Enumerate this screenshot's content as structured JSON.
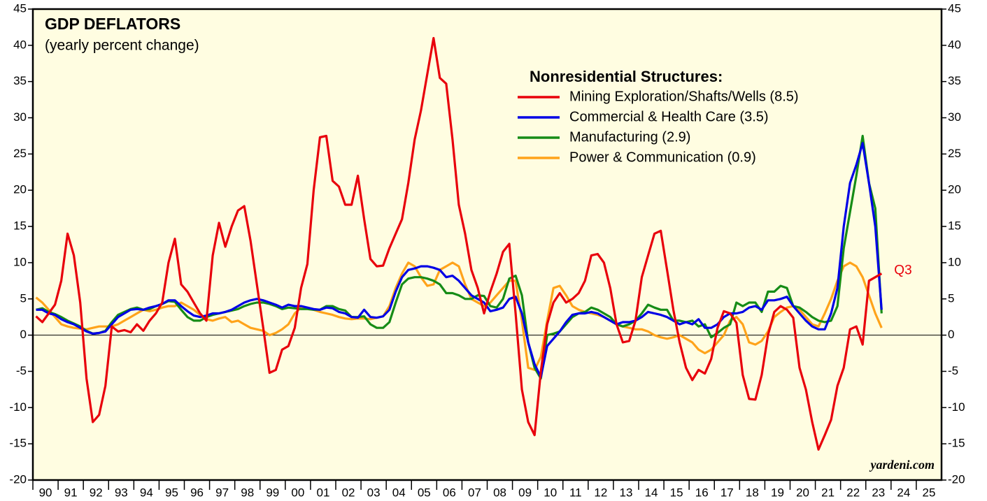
{
  "chart_data": {
    "type": "line",
    "title": "GDP DEFLATORS",
    "subtitle": "(yearly percent change)",
    "legend_title": "Nonresidential Structures:",
    "annotations": [
      "Q3",
      "yardeni.com"
    ],
    "xlim": [
      1990,
      2026
    ],
    "xticks": [
      {
        "value": 1990.5,
        "label": "90"
      },
      {
        "value": 1991.5,
        "label": "91"
      },
      {
        "value": 1992.5,
        "label": "92"
      },
      {
        "value": 1993.5,
        "label": "93"
      },
      {
        "value": 1994.5,
        "label": "94"
      },
      {
        "value": 1995.5,
        "label": "95"
      },
      {
        "value": 1996.5,
        "label": "96"
      },
      {
        "value": 1997.5,
        "label": "97"
      },
      {
        "value": 1998.5,
        "label": "98"
      },
      {
        "value": 1999.5,
        "label": "99"
      },
      {
        "value": 2000.5,
        "label": "00"
      },
      {
        "value": 2001.5,
        "label": "01"
      },
      {
        "value": 2002.5,
        "label": "02"
      },
      {
        "value": 2003.5,
        "label": "03"
      },
      {
        "value": 2004.5,
        "label": "04"
      },
      {
        "value": 2005.5,
        "label": "05"
      },
      {
        "value": 2006.5,
        "label": "06"
      },
      {
        "value": 2007.5,
        "label": "07"
      },
      {
        "value": 2008.5,
        "label": "08"
      },
      {
        "value": 2009.5,
        "label": "09"
      },
      {
        "value": 2010.5,
        "label": "10"
      },
      {
        "value": 2011.5,
        "label": "11"
      },
      {
        "value": 2012.5,
        "label": "12"
      },
      {
        "value": 2013.5,
        "label": "13"
      },
      {
        "value": 2014.5,
        "label": "14"
      },
      {
        "value": 2015.5,
        "label": "15"
      },
      {
        "value": 2016.5,
        "label": "16"
      },
      {
        "value": 2017.5,
        "label": "17"
      },
      {
        "value": 2018.5,
        "label": "18"
      },
      {
        "value": 2019.5,
        "label": "19"
      },
      {
        "value": 2020.5,
        "label": "20"
      },
      {
        "value": 2021.5,
        "label": "21"
      },
      {
        "value": 2022.5,
        "label": "22"
      },
      {
        "value": 2023.5,
        "label": "23"
      },
      {
        "value": 2024.5,
        "label": "24"
      },
      {
        "value": 2025.5,
        "label": "25"
      }
    ],
    "ylim": [
      -20,
      45
    ],
    "yticks": [
      -20,
      -15,
      -10,
      -5,
      0,
      5,
      10,
      15,
      20,
      25,
      30,
      35,
      40,
      45
    ],
    "x": [
      1990.125,
      1990.375,
      1990.625,
      1990.875,
      1991.125,
      1991.375,
      1991.625,
      1991.875,
      1992.125,
      1992.375,
      1992.625,
      1992.875,
      1993.125,
      1993.375,
      1993.625,
      1993.875,
      1994.125,
      1994.375,
      1994.625,
      1994.875,
      1995.125,
      1995.375,
      1995.625,
      1995.875,
      1996.125,
      1996.375,
      1996.625,
      1996.875,
      1997.125,
      1997.375,
      1997.625,
      1997.875,
      1998.125,
      1998.375,
      1998.625,
      1998.875,
      1999.125,
      1999.375,
      1999.625,
      1999.875,
      2000.125,
      2000.375,
      2000.625,
      2000.875,
      2001.125,
      2001.375,
      2001.625,
      2001.875,
      2002.125,
      2002.375,
      2002.625,
      2002.875,
      2003.125,
      2003.375,
      2003.625,
      2003.875,
      2004.125,
      2004.375,
      2004.625,
      2004.875,
      2005.125,
      2005.375,
      2005.625,
      2005.875,
      2006.125,
      2006.375,
      2006.625,
      2006.875,
      2007.125,
      2007.375,
      2007.625,
      2007.875,
      2008.125,
      2008.375,
      2008.625,
      2008.875,
      2009.125,
      2009.375,
      2009.625,
      2009.875,
      2010.125,
      2010.375,
      2010.625,
      2010.875,
      2011.125,
      2011.375,
      2011.625,
      2011.875,
      2012.125,
      2012.375,
      2012.625,
      2012.875,
      2013.125,
      2013.375,
      2013.625,
      2013.875,
      2014.125,
      2014.375,
      2014.625,
      2014.875,
      2015.125,
      2015.375,
      2015.625,
      2015.875,
      2016.125,
      2016.375,
      2016.625,
      2016.875,
      2017.125,
      2017.375,
      2017.625,
      2017.875,
      2018.125,
      2018.375,
      2018.625,
      2018.875,
      2019.125,
      2019.375,
      2019.625,
      2019.875,
      2020.125,
      2020.375,
      2020.625,
      2020.875,
      2021.125,
      2021.375,
      2021.625,
      2021.875,
      2022.125,
      2022.375,
      2022.625,
      2022.875,
      2023.125,
      2023.375,
      2023.625
    ],
    "series": [
      {
        "name": "Mining Exploration/Shafts/Wells (8.5)",
        "color": "#e8000b",
        "values": [
          2.6,
          1.8,
          3,
          4.2,
          7.5,
          14,
          11,
          4.5,
          -6,
          -12,
          -11,
          -7,
          1.2,
          0.5,
          0.7,
          0.4,
          1.5,
          0.6,
          2,
          3,
          4.5,
          10,
          13.3,
          7,
          6,
          4.5,
          3,
          2,
          11,
          15.5,
          12.2,
          15,
          17.2,
          17.8,
          13,
          7,
          1,
          -5.2,
          -4.8,
          -2,
          -1.5,
          1,
          6.5,
          9.8,
          20,
          27.3,
          27.5,
          21.3,
          20.5,
          18,
          18,
          22,
          16,
          10.5,
          9.5,
          9.6,
          12,
          14,
          16,
          21,
          27,
          31,
          36,
          41,
          35.5,
          34.7,
          27,
          18,
          14,
          9,
          6.5,
          3,
          6,
          8.5,
          11.5,
          12.6,
          3,
          -7.5,
          -12,
          -13.8,
          -5,
          1.5,
          4.5,
          5.8,
          4.5,
          5,
          5.8,
          7.5,
          11,
          11.2,
          10,
          6.5,
          1.5,
          -1,
          -0.8,
          2,
          8,
          11,
          14,
          14.4,
          9,
          3.5,
          -1,
          -4.5,
          -6.2,
          -4.8,
          -5.3,
          -3.3,
          1,
          3.3,
          3,
          1.7,
          -5.5,
          -8.8,
          -8.9,
          -5.5,
          0,
          3.2,
          4,
          3.5,
          2.4,
          -4.5,
          -7.5,
          -12,
          -15.8,
          -13.8,
          -11.7,
          -7,
          -4.5,
          0.8,
          1.2,
          -1.3,
          7.5,
          8,
          8.5
        ]
      },
      {
        "name": "Commercial & Health Care (3.5)",
        "color": "#0000e6",
        "values": [
          3.5,
          3.5,
          3,
          2.8,
          2.2,
          1.8,
          1.5,
          1,
          0.5,
          0.2,
          0.3,
          0.5,
          1.5,
          2.5,
          3,
          3.5,
          3.6,
          3.5,
          3.8,
          4,
          4.3,
          4.8,
          4.8,
          4,
          3.3,
          2.7,
          2.5,
          2.7,
          3,
          3,
          3.2,
          3.5,
          4,
          4.5,
          4.8,
          5,
          4.8,
          4.5,
          4.2,
          3.8,
          4.2,
          4,
          4,
          3.8,
          3.6,
          3.5,
          3.8,
          3.7,
          3.2,
          3,
          2.5,
          2.4,
          3.5,
          2.5,
          2.4,
          2.6,
          3.5,
          6,
          8,
          9,
          9.2,
          9.5,
          9.5,
          9.3,
          9,
          8,
          8.2,
          7.5,
          6.5,
          5.5,
          5,
          4.5,
          3.3,
          3.5,
          3.8,
          5,
          5.3,
          3,
          -1,
          -4,
          -5.8,
          -1.5,
          -0.5,
          0.5,
          1.8,
          2.8,
          3,
          3,
          3.2,
          3,
          2.5,
          2,
          1.5,
          1.8,
          1.8,
          2,
          2.5,
          3.2,
          3,
          2.8,
          2.5,
          2,
          1.5,
          1.8,
          1.5,
          2.2,
          1,
          1,
          1.5,
          2.5,
          3,
          3,
          3.2,
          3.8,
          4,
          3.5,
          4.8,
          4.8,
          5,
          5.3,
          4,
          3,
          2,
          1.2,
          0.8,
          0.8,
          3,
          6.5,
          15,
          21,
          23.5,
          26.5,
          21,
          15,
          3.5
        ]
      },
      {
        "name": "Manufacturing (2.9)",
        "color": "#168c16",
        "values": [
          3.5,
          3.7,
          3.2,
          2.9,
          2.5,
          2,
          1.6,
          1.2,
          0.6,
          0.2,
          0.3,
          0.6,
          1.8,
          2.8,
          3.2,
          3.6,
          3.8,
          3.5,
          3.6,
          4,
          4.3,
          4.7,
          4.6,
          3.5,
          2.5,
          2,
          2,
          2.5,
          2.8,
          3,
          3.2,
          3.4,
          3.6,
          4,
          4.3,
          4.5,
          4.5,
          4.3,
          4,
          3.6,
          3.8,
          3.7,
          3.6,
          3.6,
          3.5,
          3.5,
          4,
          4,
          3.6,
          3.4,
          2.5,
          2.5,
          2.6,
          1.5,
          1,
          1,
          1.8,
          4.5,
          7,
          7.8,
          8,
          8,
          7.8,
          7.5,
          7,
          5.8,
          5.8,
          5.5,
          5,
          5,
          5.5,
          5.4,
          4,
          3.8,
          5,
          7.8,
          8.2,
          5.5,
          -1,
          -4.5,
          -6,
          0,
          0.2,
          0.5,
          1.5,
          2.5,
          3,
          3.2,
          3.8,
          3.5,
          3,
          2.5,
          1.5,
          1.2,
          1.5,
          2,
          3,
          4.2,
          3.8,
          3.5,
          3.5,
          2,
          2,
          1.8,
          2,
          1.2,
          1.5,
          -0.3,
          0.3,
          1,
          1.5,
          4.5,
          4,
          4.5,
          4.5,
          3.2,
          6,
          6,
          6.8,
          6.5,
          4,
          3.8,
          3.2,
          2.5,
          2,
          1.8,
          2,
          4,
          12,
          17,
          22,
          27.5,
          21,
          17.5,
          3
        ]
      },
      {
        "name": "Power & Communication (0.9)",
        "color": "#ffa31a",
        "values": [
          5.2,
          4.5,
          3.5,
          2.5,
          1.5,
          1.2,
          1,
          0.9,
          0.8,
          1,
          1.2,
          1.2,
          1.2,
          1.5,
          2,
          2.5,
          3,
          3.5,
          3.3,
          3.5,
          3.8,
          4,
          4,
          4.5,
          4,
          3.5,
          2.8,
          2.2,
          2,
          2.3,
          2.5,
          1.8,
          2,
          1.5,
          1,
          0.8,
          0.6,
          0,
          0.3,
          0.8,
          1.5,
          3,
          3.8,
          3.8,
          3.5,
          3.2,
          3,
          2.8,
          2.5,
          2.3,
          2.2,
          2.3,
          2.3,
          2.2,
          2.4,
          2.6,
          4,
          6.5,
          8.5,
          10,
          9.5,
          8,
          6.8,
          7,
          9,
          9.5,
          10,
          9.5,
          7,
          5,
          4.5,
          4,
          4.5,
          5.5,
          6.5,
          7.5,
          7.5,
          2,
          -4.5,
          -4.8,
          -3,
          2,
          6.5,
          6.8,
          5.5,
          4,
          3.5,
          3.2,
          3,
          2.8,
          2.5,
          2,
          1.5,
          1.2,
          1,
          0.8,
          0.8,
          0.5,
          0,
          -0.3,
          -0.5,
          -0.3,
          0,
          -0.5,
          -1,
          -2,
          -2.5,
          -2,
          -1,
          0,
          2,
          2.5,
          1.5,
          -1,
          -1.3,
          -0.8,
          0.5,
          2.5,
          3.2,
          3.8,
          4,
          3.5,
          2.5,
          1.5,
          1.2,
          3,
          5,
          7.5,
          9.5,
          10,
          9.5,
          8,
          5.5,
          3,
          1
        ]
      }
    ]
  }
}
